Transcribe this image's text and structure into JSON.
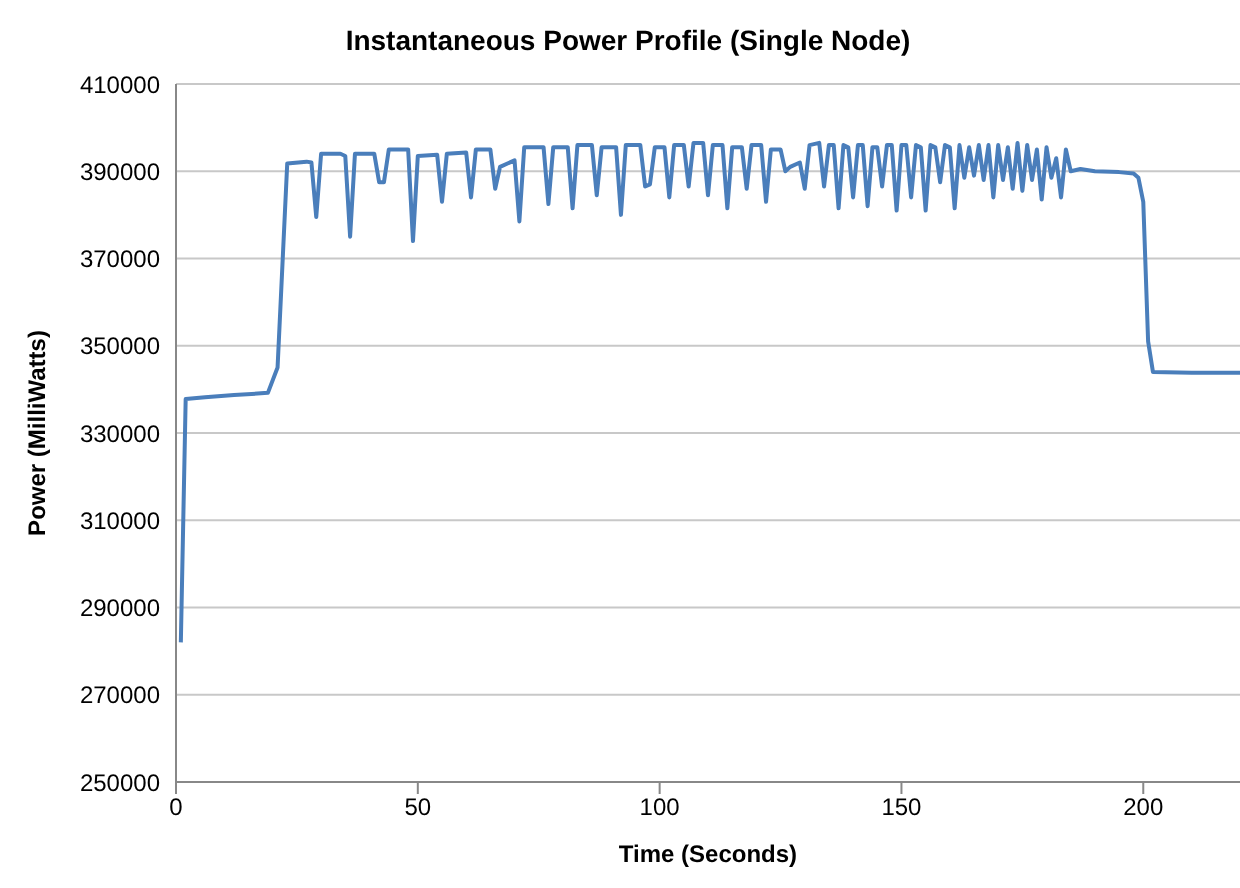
{
  "chart_data": {
    "type": "line",
    "title": "Instantaneous Power Profile (Single Node)",
    "xlabel": "Time (Seconds)",
    "ylabel": "Power (MilliWatts)",
    "x": [
      1,
      2,
      6,
      12,
      19,
      21,
      23,
      27,
      28,
      29,
      30,
      34,
      35,
      36,
      37,
      41,
      42,
      43,
      44,
      48,
      49,
      50,
      54,
      55,
      56,
      60,
      61,
      62,
      65,
      66,
      67,
      70,
      71,
      72,
      76,
      77,
      78,
      81,
      82,
      83,
      86,
      87,
      88,
      91,
      92,
      93,
      96,
      97,
      98,
      99,
      101,
      102,
      103,
      105,
      106,
      107,
      109,
      110,
      111,
      113,
      114,
      115,
      117,
      118,
      119,
      121,
      122,
      123,
      125,
      126,
      127,
      129,
      130,
      131,
      133,
      134,
      135,
      136,
      137,
      138,
      139,
      140,
      141,
      142,
      143,
      144,
      145,
      146,
      147,
      148,
      149,
      150,
      151,
      152,
      153,
      154,
      155,
      156,
      157,
      158,
      159,
      160,
      161,
      162,
      163,
      164,
      165,
      166,
      167,
      168,
      169,
      170,
      171,
      172,
      173,
      174,
      175,
      176,
      177,
      178,
      179,
      180,
      181,
      182,
      183,
      184,
      185,
      187,
      190,
      195,
      198,
      199,
      200,
      201,
      202,
      210,
      220
    ],
    "series": [
      {
        "color": "#4a7ebb",
        "values": [
          282000,
          337800,
          338200,
          338700,
          339200,
          345000,
          391800,
          392200,
          392000,
          379500,
          394000,
          394000,
          393500,
          375000,
          394000,
          394000,
          387500,
          387500,
          395000,
          395000,
          374000,
          393500,
          393800,
          383000,
          394000,
          394300,
          384000,
          395000,
          395000,
          386000,
          391000,
          392500,
          378500,
          395500,
          395500,
          382500,
          395500,
          395500,
          381500,
          396000,
          396000,
          384500,
          395500,
          395500,
          380000,
          396000,
          396000,
          386500,
          387000,
          395500,
          395500,
          384000,
          396000,
          396000,
          386500,
          396500,
          396500,
          384500,
          396000,
          396000,
          381500,
          395500,
          395500,
          386000,
          396000,
          396000,
          383000,
          395000,
          395000,
          390000,
          391000,
          392000,
          386000,
          396000,
          396500,
          386500,
          396000,
          396000,
          381500,
          396000,
          395500,
          384000,
          396000,
          396000,
          382000,
          395500,
          395500,
          386500,
          396000,
          396000,
          381000,
          396000,
          396000,
          384000,
          396000,
          395500,
          381000,
          396000,
          395500,
          387500,
          396000,
          395500,
          381500,
          396000,
          388500,
          395500,
          389000,
          396000,
          388000,
          396000,
          384000,
          396000,
          388000,
          395500,
          386000,
          396500,
          385500,
          396000,
          388000,
          395000,
          383500,
          395500,
          388500,
          393000,
          384000,
          395000,
          390000,
          390500,
          390000,
          389800,
          389500,
          388500,
          383000,
          351000,
          344000,
          343800,
          343800
        ]
      }
    ],
    "xlim": [
      0,
      220
    ],
    "xticks": [
      0,
      50,
      100,
      150,
      200
    ],
    "ylim": [
      250000,
      410000
    ],
    "yticks": [
      250000,
      270000,
      290000,
      310000,
      330000,
      350000,
      370000,
      390000,
      410000
    ],
    "grid": "y",
    "legend": false,
    "marker": "none",
    "line_style": "solid"
  }
}
